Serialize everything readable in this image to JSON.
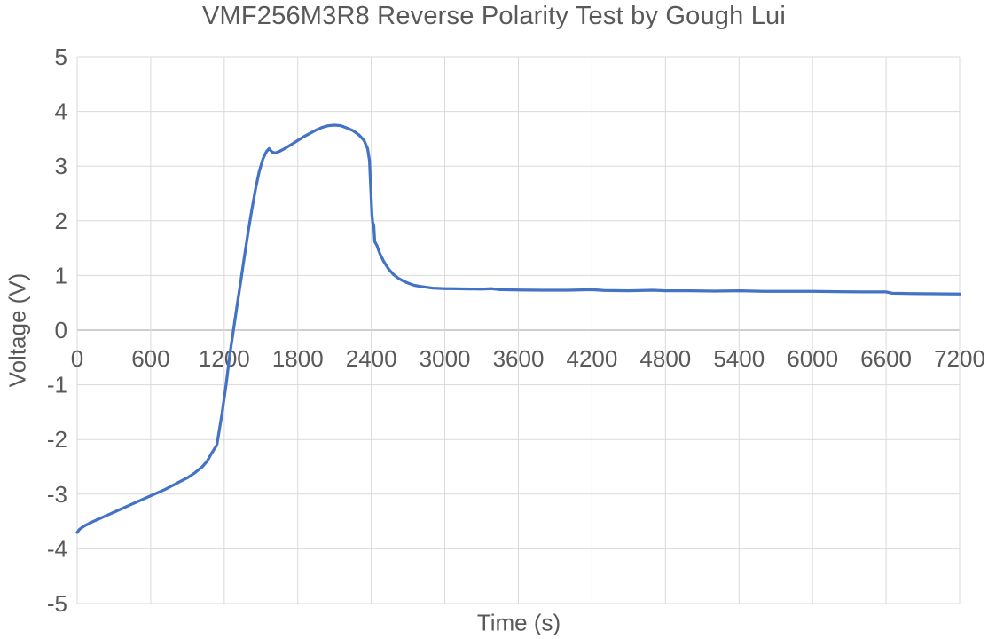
{
  "colors": {
    "line": "#4472C4",
    "grid": "#D9D9D9",
    "axis": "#BFBFBF",
    "text": "#595959",
    "background": "#FFFFFF"
  },
  "chart_data": {
    "type": "line",
    "title": "VMF256M3R8 Reverse Polarity Test by Gough Lui",
    "xlabel": "Time (s)",
    "ylabel": "Voltage (V)",
    "xlim": [
      0,
      7200
    ],
    "ylim": [
      -5,
      5
    ],
    "x_ticks": [
      0,
      600,
      1200,
      1800,
      2400,
      3000,
      3600,
      4200,
      4800,
      5400,
      6000,
      6600,
      7200
    ],
    "y_ticks": [
      -5,
      -4,
      -3,
      -2,
      -1,
      0,
      1,
      2,
      3,
      4,
      5
    ],
    "grid": true,
    "legend": false,
    "x_tick_labels_position": "below-zero-axis",
    "series": [
      {
        "name": "Voltage",
        "color": "#4472C4",
        "points": [
          [
            0,
            -3.7
          ],
          [
            20,
            -3.64
          ],
          [
            60,
            -3.58
          ],
          [
            120,
            -3.51
          ],
          [
            180,
            -3.45
          ],
          [
            240,
            -3.39
          ],
          [
            300,
            -3.33
          ],
          [
            360,
            -3.27
          ],
          [
            420,
            -3.21
          ],
          [
            480,
            -3.15
          ],
          [
            540,
            -3.09
          ],
          [
            600,
            -3.03
          ],
          [
            660,
            -2.97
          ],
          [
            720,
            -2.91
          ],
          [
            780,
            -2.84
          ],
          [
            840,
            -2.77
          ],
          [
            900,
            -2.7
          ],
          [
            960,
            -2.61
          ],
          [
            1020,
            -2.5
          ],
          [
            1060,
            -2.4
          ],
          [
            1100,
            -2.24
          ],
          [
            1140,
            -2.1
          ],
          [
            1180,
            -1.55
          ],
          [
            1215,
            -1.0
          ],
          [
            1245,
            -0.45
          ],
          [
            1275,
            0.0
          ],
          [
            1305,
            0.45
          ],
          [
            1335,
            0.9
          ],
          [
            1365,
            1.35
          ],
          [
            1395,
            1.8
          ],
          [
            1425,
            2.2
          ],
          [
            1455,
            2.58
          ],
          [
            1485,
            2.9
          ],
          [
            1515,
            3.13
          ],
          [
            1545,
            3.27
          ],
          [
            1565,
            3.32
          ],
          [
            1590,
            3.26
          ],
          [
            1615,
            3.24
          ],
          [
            1650,
            3.27
          ],
          [
            1700,
            3.33
          ],
          [
            1750,
            3.4
          ],
          [
            1800,
            3.47
          ],
          [
            1850,
            3.54
          ],
          [
            1900,
            3.6
          ],
          [
            1950,
            3.66
          ],
          [
            2000,
            3.71
          ],
          [
            2050,
            3.74
          ],
          [
            2100,
            3.75
          ],
          [
            2150,
            3.74
          ],
          [
            2200,
            3.7
          ],
          [
            2250,
            3.65
          ],
          [
            2300,
            3.57
          ],
          [
            2340,
            3.47
          ],
          [
            2370,
            3.32
          ],
          [
            2385,
            3.1
          ],
          [
            2395,
            2.6
          ],
          [
            2405,
            2.1
          ],
          [
            2412,
            1.96
          ],
          [
            2420,
            1.93
          ],
          [
            2428,
            1.62
          ],
          [
            2445,
            1.55
          ],
          [
            2470,
            1.4
          ],
          [
            2500,
            1.26
          ],
          [
            2540,
            1.12
          ],
          [
            2580,
            1.02
          ],
          [
            2620,
            0.95
          ],
          [
            2660,
            0.9
          ],
          [
            2700,
            0.86
          ],
          [
            2750,
            0.82
          ],
          [
            2800,
            0.8
          ],
          [
            2900,
            0.77
          ],
          [
            3000,
            0.76
          ],
          [
            3150,
            0.755
          ],
          [
            3300,
            0.75
          ],
          [
            3380,
            0.76
          ],
          [
            3450,
            0.74
          ],
          [
            3600,
            0.735
          ],
          [
            3800,
            0.73
          ],
          [
            4000,
            0.73
          ],
          [
            4200,
            0.74
          ],
          [
            4300,
            0.725
          ],
          [
            4500,
            0.72
          ],
          [
            4700,
            0.73
          ],
          [
            4800,
            0.72
          ],
          [
            5000,
            0.72
          ],
          [
            5200,
            0.715
          ],
          [
            5400,
            0.72
          ],
          [
            5600,
            0.71
          ],
          [
            5800,
            0.71
          ],
          [
            6000,
            0.71
          ],
          [
            6200,
            0.705
          ],
          [
            6400,
            0.7
          ],
          [
            6600,
            0.7
          ],
          [
            6650,
            0.675
          ],
          [
            6800,
            0.67
          ],
          [
            7000,
            0.665
          ],
          [
            7200,
            0.66
          ]
        ]
      }
    ]
  }
}
